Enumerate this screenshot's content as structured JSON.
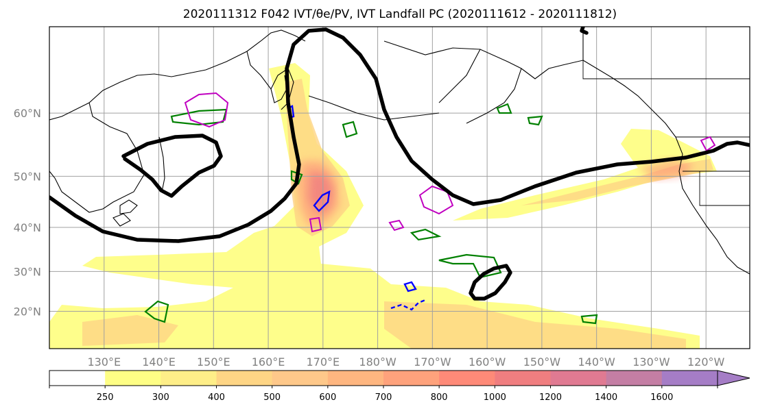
{
  "title": "2020111312 F042 IVT/θe/PV, IVT Landfall PC (2020111612 - 2020111812)",
  "map": {
    "lat_ticks": [
      {
        "value": 60,
        "label": "60°N"
      },
      {
        "value": 50,
        "label": "50°N"
      },
      {
        "value": 40,
        "label": "40°N"
      },
      {
        "value": 30,
        "label": "30°N"
      },
      {
        "value": 20,
        "label": "20°N"
      }
    ],
    "lon_ticks": [
      {
        "value": 130,
        "label": "130°E"
      },
      {
        "value": 140,
        "label": "140°E"
      },
      {
        "value": 150,
        "label": "150°E"
      },
      {
        "value": 160,
        "label": "160°E"
      },
      {
        "value": 170,
        "label": "170°E"
      },
      {
        "value": 180,
        "label": "180°W"
      },
      {
        "value": 190,
        "label": "170°W"
      },
      {
        "value": 200,
        "label": "160°W"
      },
      {
        "value": 210,
        "label": "150°W"
      },
      {
        "value": 220,
        "label": "140°W"
      },
      {
        "value": 230,
        "label": "130°W"
      },
      {
        "value": 240,
        "label": "120°W"
      }
    ],
    "lon_range": [
      120,
      248
    ],
    "lat_range": [
      10,
      70
    ]
  },
  "colorbar": {
    "levels": [
      {
        "label": "250",
        "color": "#fefe85"
      },
      {
        "label": "300",
        "color": "#feee88"
      },
      {
        "label": "400",
        "color": "#fed585"
      },
      {
        "label": "500",
        "color": "#fec88a"
      },
      {
        "label": "600",
        "color": "#feb680"
      },
      {
        "label": "700",
        "color": "#fea27c"
      },
      {
        "label": "800",
        "color": "#fe8a78"
      },
      {
        "label": "1000",
        "color": "#f07e80"
      },
      {
        "label": "1200",
        "color": "#e07a92"
      },
      {
        "label": "1400",
        "color": "#c47ea4"
      },
      {
        "label": "1600",
        "color": "#a57dc6"
      }
    ],
    "low_color": "#ffffff",
    "extend_color": "#a57dc6"
  }
}
